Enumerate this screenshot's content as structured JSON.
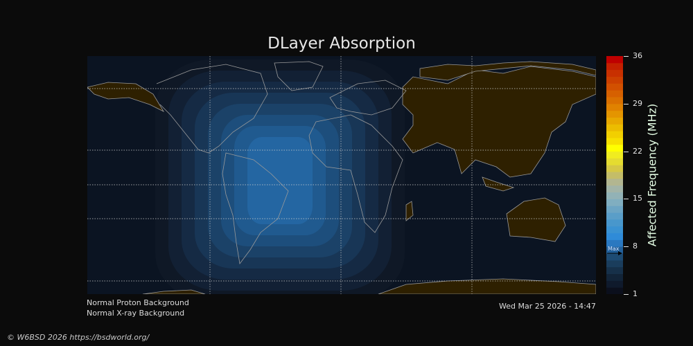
{
  "title": "DLayer Absorption",
  "colorbar": {
    "label": "Affected Frequency (MHz)",
    "ticks": [
      "36",
      "29",
      "22",
      "15",
      "8",
      "1"
    ],
    "min": 1,
    "max": 36,
    "max_marker_label": "Max",
    "max_marker_value": 7,
    "colors": [
      "#0b0f1c",
      "#0f1a2c",
      "#122438",
      "#163049",
      "#1a3d5c",
      "#1d4b73",
      "#22609a",
      "#2a78c0",
      "#2f8bd8",
      "#3a92d2",
      "#4897cc",
      "#5a9ec8",
      "#6ca5c4",
      "#80aec0",
      "#92b2b6",
      "#a2b4a8",
      "#b2b690",
      "#c4bd68",
      "#d6c845",
      "#e5dc30",
      "#f0ec20",
      "#ffff00",
      "#f7e000",
      "#f2cf00",
      "#ecbc00",
      "#e8a800",
      "#e49500",
      "#e08200",
      "#da7000",
      "#d66000",
      "#d25000",
      "#cc4000",
      "#c83000",
      "#c42000",
      "#bf0000"
    ]
  },
  "map": {
    "ocean_color": "#0b1422",
    "land_color": "#2e2000",
    "coast_color": "#9a9a9a",
    "contour_colors": [
      "#0f1826",
      "#122034",
      "#152a44",
      "#183656",
      "#1b4268",
      "#1d4e7c",
      "#205a8f",
      "#2466a2"
    ]
  },
  "status": {
    "proton": "Normal Proton Background",
    "xray": "Normal X-ray Background",
    "timestamp": "Wed Mar 25 2026 - 14:47"
  },
  "copyright": "© W6BSD 2026 https://bsdworld.org/"
}
